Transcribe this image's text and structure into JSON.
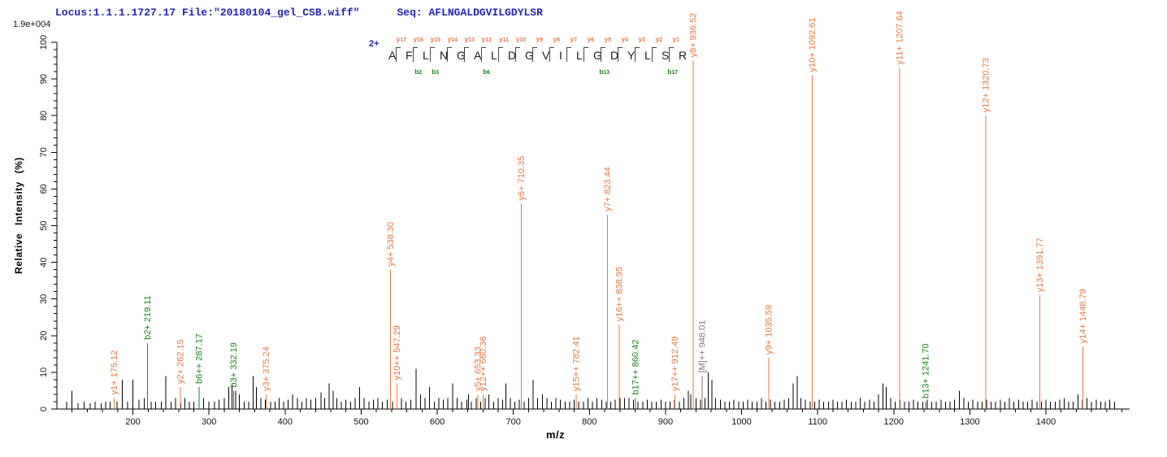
{
  "header": {
    "locus_text": "Locus:1.1.1.1727.17 File:\"20180104_gel_CSB.wiff\"",
    "seq_label_and_value": "Seq: AFLNGALDGVILGDYLSR",
    "max_intensity": "1.9e+004"
  },
  "colors": {
    "y_ion": "#e6793e",
    "b_ion": "#178517",
    "precursor": "#7a7a7a",
    "peak": "#000000",
    "header_blue": "#2323b4",
    "axis": "#000000"
  },
  "ladder": {
    "charge": "2+",
    "residues": [
      "A",
      "F",
      "L",
      "N",
      "G",
      "A",
      "L",
      "D",
      "G",
      "V",
      "I",
      "L",
      "G",
      "D",
      "Y",
      "L",
      "S",
      "R"
    ],
    "y_labels": [
      "y17",
      "y16",
      "y15",
      "y14",
      "y13",
      "y12",
      "y11",
      "y10",
      "y9",
      "y8",
      "y7",
      "y6",
      "y5",
      "y4",
      "y3",
      "y2",
      "y1"
    ],
    "b_labels": {
      "2": "b2",
      "3": "b3",
      "6": "b6",
      "13": "b13",
      "17": "b17"
    }
  },
  "chart_data": {
    "type": "bar",
    "subtype": "ms2-spectrum",
    "title": "",
    "xlabel": "m/z",
    "ylabel": "Relative  Intensity  (%)",
    "xlim": [
      100,
      1510
    ],
    "ylim": [
      0,
      100
    ],
    "x_major_ticks": [
      200,
      300,
      400,
      500,
      600,
      700,
      800,
      900,
      1000,
      1100,
      1200,
      1300,
      1400
    ],
    "x_minor_step": 20,
    "y_major_ticks": [
      0,
      10,
      20,
      30,
      40,
      50,
      60,
      70,
      80,
      90,
      100
    ],
    "y_minor_step": 2,
    "grid": false,
    "labeled_peaks": [
      {
        "label": "y1+ 175.12",
        "mz": 175.12,
        "intensity": 3,
        "type": "y"
      },
      {
        "label": "b2+ 219.11",
        "mz": 219.11,
        "intensity": 18,
        "type": "b"
      },
      {
        "label": "y2+ 262.15",
        "mz": 262.15,
        "intensity": 6,
        "type": "y"
      },
      {
        "label": "b6++ 287.17",
        "mz": 287.17,
        "intensity": 6,
        "type": "b"
      },
      {
        "label": "b3+ 332.19",
        "mz": 332.19,
        "intensity": 5,
        "type": "b"
      },
      {
        "label": "y3+ 375.24",
        "mz": 375.24,
        "intensity": 4,
        "type": "y"
      },
      {
        "label": "y4+ 538.30",
        "mz": 538.3,
        "intensity": 38,
        "type": "y"
      },
      {
        "label": "y10++ 547.29",
        "mz": 547.29,
        "intensity": 7,
        "type": "y"
      },
      {
        "label": "y5+ 653.33",
        "mz": 653.33,
        "intensity": 4,
        "type": "y"
      },
      {
        "label": "y12++ 660.36",
        "mz": 660.36,
        "intensity": 4,
        "type": "y"
      },
      {
        "label": "y6+ 710.35",
        "mz": 710.35,
        "intensity": 56,
        "type": "y"
      },
      {
        "label": "y15++ 782.41",
        "mz": 782.41,
        "intensity": 4,
        "type": "y"
      },
      {
        "label": "y7+ 823.44",
        "mz": 823.44,
        "intensity": 53,
        "type": "y"
      },
      {
        "label": "y16++ 838.95",
        "mz": 838.95,
        "intensity": 23,
        "type": "y"
      },
      {
        "label": "b17++ 860.42",
        "mz": 860.42,
        "intensity": 3,
        "type": "b"
      },
      {
        "label": "y17++ 912.49",
        "mz": 912.49,
        "intensity": 4,
        "type": "y"
      },
      {
        "label": "y8+ 936.52",
        "mz": 936.52,
        "intensity": 95,
        "type": "y"
      },
      {
        "label": "[M]++ 948.01",
        "mz": 948.01,
        "intensity": 9,
        "type": "M"
      },
      {
        "label": "y9+ 1035.59",
        "mz": 1035.59,
        "intensity": 14,
        "type": "y"
      },
      {
        "label": "y10+ 1092.61",
        "mz": 1092.61,
        "intensity": 91,
        "type": "y"
      },
      {
        "label": "y11+ 1207.64",
        "mz": 1207.64,
        "intensity": 93,
        "type": "y"
      },
      {
        "label": "b13+ 1241.70",
        "mz": 1241.7,
        "intensity": 2,
        "type": "b"
      },
      {
        "label": "y12+ 1320.73",
        "mz": 1320.73,
        "intensity": 80,
        "type": "y"
      },
      {
        "label": "y13+ 1391.77",
        "mz": 1391.77,
        "intensity": 31,
        "type": "y"
      },
      {
        "label": "y14+ 1448.79",
        "mz": 1448.79,
        "intensity": 17,
        "type": "y"
      }
    ],
    "noise_peaks": [
      [
        113,
        2
      ],
      [
        120,
        5
      ],
      [
        128,
        1.5
      ],
      [
        136,
        2
      ],
      [
        144,
        1.5
      ],
      [
        150,
        2
      ],
      [
        158,
        1.5
      ],
      [
        164,
        2
      ],
      [
        170,
        2
      ],
      [
        179,
        2
      ],
      [
        186,
        8
      ],
      [
        193,
        2
      ],
      [
        200,
        8
      ],
      [
        208,
        2.5
      ],
      [
        215,
        3
      ],
      [
        224,
        2
      ],
      [
        230,
        2
      ],
      [
        237,
        2
      ],
      [
        243,
        9
      ],
      [
        250,
        2
      ],
      [
        256,
        3
      ],
      [
        263,
        1.5
      ],
      [
        268,
        3
      ],
      [
        274,
        2
      ],
      [
        280,
        2
      ],
      [
        287,
        5
      ],
      [
        293,
        3
      ],
      [
        300,
        2
      ],
      [
        307,
        2
      ],
      [
        313,
        2.5
      ],
      [
        320,
        3
      ],
      [
        326,
        6
      ],
      [
        330,
        7
      ],
      [
        335,
        5
      ],
      [
        340,
        4
      ],
      [
        346,
        2
      ],
      [
        352,
        2
      ],
      [
        358,
        9
      ],
      [
        362,
        6
      ],
      [
        368,
        3
      ],
      [
        374,
        2.5
      ],
      [
        381,
        2
      ],
      [
        387,
        2
      ],
      [
        392,
        3
      ],
      [
        398,
        2
      ],
      [
        404,
        2.5
      ],
      [
        410,
        4
      ],
      [
        416,
        3
      ],
      [
        422,
        2
      ],
      [
        428,
        3
      ],
      [
        434,
        2.5
      ],
      [
        440,
        3
      ],
      [
        447,
        4.5
      ],
      [
        452,
        3
      ],
      [
        458,
        7
      ],
      [
        463,
        5
      ],
      [
        468,
        3
      ],
      [
        474,
        2
      ],
      [
        480,
        2.5
      ],
      [
        486,
        2
      ],
      [
        492,
        3
      ],
      [
        498,
        6
      ],
      [
        504,
        3
      ],
      [
        510,
        2
      ],
      [
        516,
        2.5
      ],
      [
        522,
        3
      ],
      [
        528,
        2
      ],
      [
        534,
        2.5
      ],
      [
        541,
        2
      ],
      [
        547,
        2
      ],
      [
        553,
        3
      ],
      [
        559,
        2
      ],
      [
        565,
        2.5
      ],
      [
        572,
        11
      ],
      [
        578,
        4
      ],
      [
        584,
        3
      ],
      [
        590,
        6
      ],
      [
        596,
        2
      ],
      [
        602,
        3
      ],
      [
        608,
        2.5
      ],
      [
        614,
        3
      ],
      [
        620,
        7
      ],
      [
        626,
        3
      ],
      [
        632,
        2
      ],
      [
        639,
        2.5
      ],
      [
        641,
        4
      ],
      [
        645,
        2
      ],
      [
        651,
        3
      ],
      [
        657,
        2
      ],
      [
        663,
        3
      ],
      [
        668,
        4
      ],
      [
        674,
        2
      ],
      [
        680,
        3
      ],
      [
        686,
        2.5
      ],
      [
        690,
        7
      ],
      [
        696,
        3
      ],
      [
        702,
        2
      ],
      [
        708,
        2.5
      ],
      [
        714,
        2
      ],
      [
        720,
        3
      ],
      [
        726,
        8
      ],
      [
        732,
        3
      ],
      [
        738,
        4
      ],
      [
        744,
        3
      ],
      [
        750,
        2
      ],
      [
        756,
        3
      ],
      [
        762,
        2.5
      ],
      [
        768,
        2
      ],
      [
        774,
        2
      ],
      [
        780,
        2.5
      ],
      [
        786,
        2
      ],
      [
        792,
        2
      ],
      [
        798,
        3
      ],
      [
        804,
        2
      ],
      [
        810,
        3
      ],
      [
        816,
        2.5
      ],
      [
        822,
        2
      ],
      [
        828,
        2
      ],
      [
        834,
        2.5
      ],
      [
        840,
        3
      ],
      [
        846,
        3
      ],
      [
        852,
        3
      ],
      [
        858,
        2.5
      ],
      [
        864,
        2
      ],
      [
        870,
        2
      ],
      [
        876,
        2.5
      ],
      [
        882,
        2
      ],
      [
        888,
        2
      ],
      [
        894,
        2.5
      ],
      [
        900,
        2
      ],
      [
        906,
        2
      ],
      [
        912,
        2.5
      ],
      [
        918,
        2
      ],
      [
        924,
        3
      ],
      [
        930,
        5
      ],
      [
        933,
        4
      ],
      [
        940,
        3
      ],
      [
        946,
        2.5
      ],
      [
        952,
        3
      ],
      [
        956,
        10
      ],
      [
        961,
        8
      ],
      [
        966,
        3
      ],
      [
        972,
        2.5
      ],
      [
        978,
        2
      ],
      [
        984,
        2
      ],
      [
        990,
        2.5
      ],
      [
        996,
        2
      ],
      [
        1002,
        2
      ],
      [
        1008,
        2.5
      ],
      [
        1014,
        2
      ],
      [
        1020,
        2
      ],
      [
        1026,
        3
      ],
      [
        1032,
        2
      ],
      [
        1038,
        2.5
      ],
      [
        1044,
        2
      ],
      [
        1050,
        2
      ],
      [
        1056,
        2.5
      ],
      [
        1062,
        3
      ],
      [
        1068,
        7
      ],
      [
        1073,
        9
      ],
      [
        1078,
        3
      ],
      [
        1084,
        2.5
      ],
      [
        1090,
        2
      ],
      [
        1096,
        2
      ],
      [
        1102,
        2.5
      ],
      [
        1108,
        2
      ],
      [
        1114,
        2
      ],
      [
        1120,
        2.5
      ],
      [
        1126,
        2
      ],
      [
        1132,
        2
      ],
      [
        1138,
        2.5
      ],
      [
        1144,
        2
      ],
      [
        1150,
        2
      ],
      [
        1156,
        3
      ],
      [
        1162,
        2
      ],
      [
        1168,
        2.5
      ],
      [
        1174,
        2
      ],
      [
        1180,
        4
      ],
      [
        1186,
        7
      ],
      [
        1190,
        6
      ],
      [
        1196,
        3
      ],
      [
        1202,
        2
      ],
      [
        1208,
        2.5
      ],
      [
        1214,
        2
      ],
      [
        1220,
        2
      ],
      [
        1226,
        2.5
      ],
      [
        1232,
        2
      ],
      [
        1238,
        2
      ],
      [
        1244,
        2.5
      ],
      [
        1250,
        2
      ],
      [
        1256,
        2
      ],
      [
        1262,
        2.5
      ],
      [
        1268,
        2
      ],
      [
        1274,
        2
      ],
      [
        1280,
        2.5
      ],
      [
        1286,
        5
      ],
      [
        1292,
        3
      ],
      [
        1298,
        2
      ],
      [
        1304,
        2.5
      ],
      [
        1310,
        2
      ],
      [
        1316,
        2
      ],
      [
        1322,
        2.5
      ],
      [
        1328,
        2
      ],
      [
        1334,
        2
      ],
      [
        1340,
        2.5
      ],
      [
        1346,
        2
      ],
      [
        1352,
        3
      ],
      [
        1358,
        2
      ],
      [
        1364,
        2.5
      ],
      [
        1370,
        2
      ],
      [
        1376,
        2
      ],
      [
        1382,
        2.5
      ],
      [
        1388,
        2
      ],
      [
        1394,
        2
      ],
      [
        1400,
        2.5
      ],
      [
        1406,
        2
      ],
      [
        1412,
        2
      ],
      [
        1418,
        2.5
      ],
      [
        1424,
        3
      ],
      [
        1430,
        2
      ],
      [
        1436,
        2
      ],
      [
        1442,
        4
      ],
      [
        1448,
        2.5
      ],
      [
        1454,
        3
      ],
      [
        1460,
        2
      ],
      [
        1466,
        2.5
      ],
      [
        1472,
        2
      ],
      [
        1478,
        2
      ],
      [
        1484,
        2.5
      ],
      [
        1490,
        2
      ]
    ]
  }
}
